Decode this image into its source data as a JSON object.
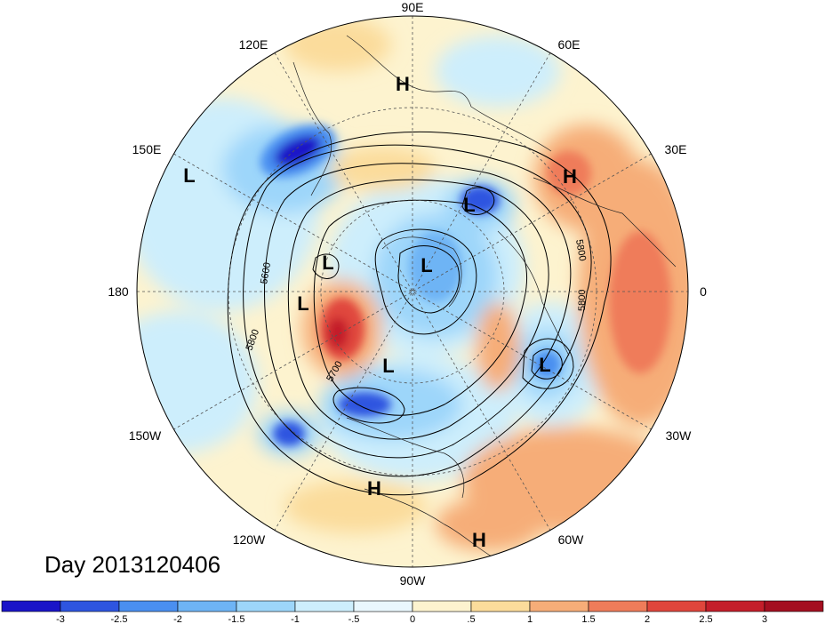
{
  "title": "Day 2013120406",
  "longitude_labels": {
    "top": "90E",
    "top_left": "120E",
    "top_right": "60E",
    "left_upper": "150E",
    "right_upper": "30E",
    "left": "180",
    "right": "0",
    "left_lower": "150W",
    "right_lower": "30W",
    "bottom_left": "120W",
    "bottom_right": "60W",
    "bottom": "90W"
  },
  "pressure_centers": [
    {
      "type": "H",
      "label": "H"
    },
    {
      "type": "L",
      "label": "L"
    },
    {
      "type": "H",
      "label": "H"
    },
    {
      "type": "L",
      "label": "L"
    },
    {
      "type": "L",
      "label": "L"
    },
    {
      "type": "L",
      "label": "L"
    },
    {
      "type": "L",
      "label": "L"
    },
    {
      "type": "L",
      "label": "L"
    },
    {
      "type": "L",
      "label": "L"
    },
    {
      "type": "H",
      "label": "H"
    },
    {
      "type": "H",
      "label": "H"
    }
  ],
  "contour_labels": [
    "5600",
    "5800",
    "5700",
    "5800",
    "5800"
  ],
  "colorbar": {
    "ticks": [
      "-3",
      "-2.5",
      "-2",
      "-1.5",
      "-1",
      "-.5",
      "0",
      ".5",
      "1",
      "1.5",
      "2",
      "2.5",
      "3"
    ],
    "colors": [
      "#1a14c8",
      "#2e55e0",
      "#4a8ff0",
      "#6eb4f5",
      "#9dd6fa",
      "#cdeefc",
      "#eaf7fd",
      "#fdf3cf",
      "#fbdc9b",
      "#f6ad78",
      "#ef7c5a",
      "#e0463c",
      "#c41e2a",
      "#a40f20"
    ]
  },
  "colors": {
    "deep_blue": "#1a14c8",
    "light_blue": "#9dd6fa",
    "cream": "#fdf3cf",
    "orange": "#f6ad78",
    "red": "#e0463c"
  }
}
